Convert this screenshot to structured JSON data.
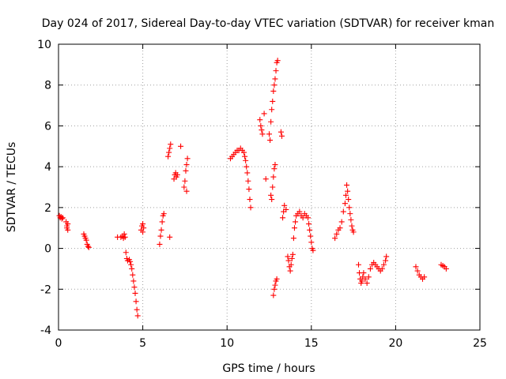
{
  "chart_data": {
    "type": "scatter",
    "title": "Day 024 of 2017, Sidereal Day-to-day VTEC variation (SDTVAR) for receiver kman",
    "xlabel": "GPS time / hours",
    "ylabel": "SDTVAR / TECUs",
    "xlim": [
      0,
      25
    ],
    "ylim": [
      -4,
      10
    ],
    "x_ticks": [
      0,
      5,
      10,
      15,
      20,
      25
    ],
    "y_ticks": [
      -4,
      -2,
      0,
      2,
      4,
      6,
      8,
      10
    ],
    "x_tick_labels": [
      "0",
      "5",
      "10",
      "15",
      "20",
      "25"
    ],
    "y_tick_labels": [
      "-4",
      "-2",
      "0",
      "2",
      "4",
      "6",
      "8",
      "10"
    ],
    "grid": true,
    "marker": "+",
    "series_color": "#ff0000",
    "series": [
      {
        "name": "SDTVAR",
        "points": [
          [
            0.05,
            1.6
          ],
          [
            0.1,
            1.5
          ],
          [
            0.15,
            1.55
          ],
          [
            0.2,
            1.45
          ],
          [
            0.25,
            1.5
          ],
          [
            0.45,
            1.3
          ],
          [
            0.5,
            1.1
          ],
          [
            0.5,
            1.0
          ],
          [
            0.55,
            0.9
          ],
          [
            0.55,
            1.2
          ],
          [
            1.5,
            0.7
          ],
          [
            1.55,
            0.6
          ],
          [
            1.6,
            0.5
          ],
          [
            1.65,
            0.4
          ],
          [
            1.7,
            0.2
          ],
          [
            1.75,
            0.1
          ],
          [
            1.8,
            0.05
          ],
          [
            3.5,
            0.55
          ],
          [
            3.7,
            0.55
          ],
          [
            3.8,
            0.6
          ],
          [
            3.85,
            0.5
          ],
          [
            3.9,
            0.7
          ],
          [
            3.95,
            0.55
          ],
          [
            4.0,
            -0.2
          ],
          [
            4.05,
            -0.5
          ],
          [
            4.1,
            -0.6
          ],
          [
            4.2,
            -0.55
          ],
          [
            4.25,
            -0.65
          ],
          [
            4.3,
            -0.8
          ],
          [
            4.35,
            -1.0
          ],
          [
            4.4,
            -1.3
          ],
          [
            4.45,
            -1.6
          ],
          [
            4.5,
            -1.9
          ],
          [
            4.55,
            -2.2
          ],
          [
            4.6,
            -2.6
          ],
          [
            4.65,
            -3.0
          ],
          [
            4.7,
            -3.3
          ],
          [
            4.9,
            0.9
          ],
          [
            4.95,
            1.1
          ],
          [
            5.0,
            1.2
          ],
          [
            5.05,
            1.0
          ],
          [
            5.0,
            0.8
          ],
          [
            6.0,
            0.2
          ],
          [
            6.05,
            0.6
          ],
          [
            6.1,
            0.9
          ],
          [
            6.15,
            1.3
          ],
          [
            6.2,
            1.6
          ],
          [
            6.25,
            1.7
          ],
          [
            6.5,
            4.5
          ],
          [
            6.55,
            4.7
          ],
          [
            6.6,
            4.9
          ],
          [
            6.65,
            5.1
          ],
          [
            6.6,
            0.55
          ],
          [
            6.85,
            3.4
          ],
          [
            6.9,
            3.6
          ],
          [
            6.95,
            3.7
          ],
          [
            7.0,
            3.5
          ],
          [
            7.05,
            3.6
          ],
          [
            7.25,
            5.0
          ],
          [
            7.45,
            3.0
          ],
          [
            7.5,
            3.3
          ],
          [
            7.55,
            3.8
          ],
          [
            7.6,
            4.1
          ],
          [
            7.6,
            2.8
          ],
          [
            7.65,
            4.4
          ],
          [
            10.2,
            4.4
          ],
          [
            10.3,
            4.5
          ],
          [
            10.4,
            4.6
          ],
          [
            10.5,
            4.7
          ],
          [
            10.6,
            4.8
          ],
          [
            10.7,
            4.8
          ],
          [
            10.8,
            4.9
          ],
          [
            10.9,
            4.8
          ],
          [
            11.0,
            4.7
          ],
          [
            11.05,
            4.5
          ],
          [
            11.1,
            4.3
          ],
          [
            11.15,
            4.0
          ],
          [
            11.2,
            3.7
          ],
          [
            11.25,
            3.3
          ],
          [
            11.3,
            2.9
          ],
          [
            11.35,
            2.4
          ],
          [
            11.4,
            2.0
          ],
          [
            11.95,
            6.3
          ],
          [
            12.0,
            6.0
          ],
          [
            12.05,
            5.8
          ],
          [
            12.1,
            5.6
          ],
          [
            12.2,
            6.6
          ],
          [
            12.3,
            3.4
          ],
          [
            12.5,
            5.6
          ],
          [
            12.55,
            5.3
          ],
          [
            12.6,
            2.6
          ],
          [
            12.65,
            2.4
          ],
          [
            12.7,
            3.0
          ],
          [
            12.75,
            3.5
          ],
          [
            12.8,
            3.9
          ],
          [
            12.85,
            4.1
          ],
          [
            12.6,
            6.2
          ],
          [
            12.65,
            6.8
          ],
          [
            12.7,
            7.2
          ],
          [
            12.75,
            7.7
          ],
          [
            12.8,
            8.0
          ],
          [
            12.85,
            8.3
          ],
          [
            12.9,
            8.7
          ],
          [
            12.95,
            9.1
          ],
          [
            13.0,
            9.2
          ],
          [
            12.75,
            -2.3
          ],
          [
            12.8,
            -2.0
          ],
          [
            12.85,
            -1.8
          ],
          [
            12.9,
            -1.6
          ],
          [
            12.95,
            -1.5
          ],
          [
            13.2,
            5.7
          ],
          [
            13.25,
            5.5
          ],
          [
            13.3,
            1.5
          ],
          [
            13.35,
            1.8
          ],
          [
            13.4,
            2.1
          ],
          [
            13.5,
            1.9
          ],
          [
            13.6,
            -0.4
          ],
          [
            13.65,
            -0.6
          ],
          [
            13.7,
            -0.9
          ],
          [
            13.75,
            -1.1
          ],
          [
            13.8,
            -0.8
          ],
          [
            13.85,
            -0.5
          ],
          [
            13.9,
            -0.3
          ],
          [
            13.95,
            0.5
          ],
          [
            14.0,
            1.0
          ],
          [
            14.05,
            1.3
          ],
          [
            14.1,
            1.6
          ],
          [
            14.2,
            1.7
          ],
          [
            14.3,
            1.8
          ],
          [
            14.4,
            1.6
          ],
          [
            14.5,
            1.5
          ],
          [
            14.6,
            1.7
          ],
          [
            14.7,
            1.6
          ],
          [
            14.8,
            1.5
          ],
          [
            14.85,
            1.2
          ],
          [
            14.9,
            0.9
          ],
          [
            14.95,
            0.6
          ],
          [
            15.0,
            0.3
          ],
          [
            15.05,
            0.0
          ],
          [
            15.1,
            -0.1
          ],
          [
            16.4,
            0.5
          ],
          [
            16.5,
            0.7
          ],
          [
            16.6,
            0.9
          ],
          [
            16.7,
            1.0
          ],
          [
            16.8,
            1.3
          ],
          [
            16.9,
            1.8
          ],
          [
            17.0,
            2.2
          ],
          [
            17.05,
            2.6
          ],
          [
            17.1,
            3.1
          ],
          [
            17.15,
            2.8
          ],
          [
            17.2,
            2.4
          ],
          [
            17.25,
            2.0
          ],
          [
            17.3,
            1.7
          ],
          [
            17.35,
            1.4
          ],
          [
            17.4,
            1.1
          ],
          [
            17.45,
            0.9
          ],
          [
            17.5,
            0.8
          ],
          [
            17.8,
            -0.8
          ],
          [
            17.85,
            -1.2
          ],
          [
            17.9,
            -1.5
          ],
          [
            17.95,
            -1.7
          ],
          [
            18.0,
            -1.6
          ],
          [
            18.05,
            -1.4
          ],
          [
            18.1,
            -1.2
          ],
          [
            18.2,
            -1.5
          ],
          [
            18.3,
            -1.7
          ],
          [
            18.4,
            -1.4
          ],
          [
            18.5,
            -1.0
          ],
          [
            18.6,
            -0.8
          ],
          [
            18.7,
            -0.7
          ],
          [
            18.8,
            -0.8
          ],
          [
            18.9,
            -0.9
          ],
          [
            19.0,
            -1.0
          ],
          [
            19.1,
            -1.1
          ],
          [
            19.2,
            -1.0
          ],
          [
            19.3,
            -0.8
          ],
          [
            19.4,
            -0.6
          ],
          [
            19.45,
            -0.4
          ],
          [
            21.2,
            -0.9
          ],
          [
            21.3,
            -1.1
          ],
          [
            21.4,
            -1.3
          ],
          [
            21.5,
            -1.4
          ],
          [
            21.6,
            -1.5
          ],
          [
            21.7,
            -1.4
          ],
          [
            22.7,
            -0.8
          ],
          [
            22.8,
            -0.85
          ],
          [
            22.9,
            -0.9
          ],
          [
            23.0,
            -1.0
          ]
        ]
      }
    ]
  }
}
